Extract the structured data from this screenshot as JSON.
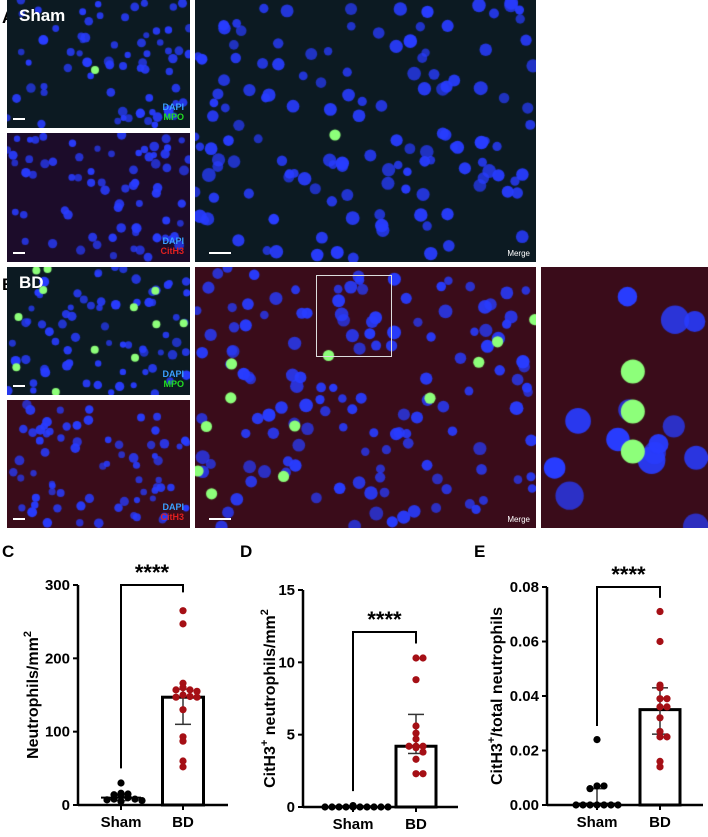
{
  "panels": {
    "A": "A",
    "B": "B",
    "C": "C",
    "D": "D",
    "E": "E"
  },
  "micrographs": {
    "sham_label": "Sham",
    "bd_label": "BD",
    "stain_dapi": "DAPI",
    "stain_mpo": "MPO",
    "stain_cith3": "CitH3",
    "merge": "Merge",
    "colors": {
      "dapi": "#2f6bff",
      "mpo": "#22dd22",
      "cith3": "#e02020"
    }
  },
  "chart_data": [
    {
      "type": "bar",
      "panel": "C",
      "ylabel": "Neutrophils/mm",
      "ylabel_sup": "2",
      "ylim": [
        0,
        300
      ],
      "yticks": [
        "0",
        "100",
        "200",
        "300"
      ],
      "categories": [
        "Sham",
        "BD"
      ],
      "means": [
        10,
        147
      ],
      "error": [
        [
          6,
          14
        ],
        [
          110,
          158
        ]
      ],
      "points": [
        [
          30,
          16,
          15,
          14,
          12,
          10,
          8,
          8,
          7,
          6,
          5
        ],
        [
          265,
          247,
          166,
          160,
          157,
          157,
          155,
          150,
          148,
          147,
          147,
          130,
          93,
          87,
          60,
          52
        ]
      ],
      "significance": "****",
      "bracket": {
        "top": 300,
        "legs": [
          50,
          290
        ]
      }
    },
    {
      "type": "bar",
      "panel": "D",
      "ylabel": "CitH3",
      "ylabel_sup": "+",
      "ylabel_rest": " neutrophils/mm",
      "ylabel_sup2": "2",
      "ylim": [
        0,
        15
      ],
      "yticks": [
        "0",
        "5",
        "10",
        "15"
      ],
      "categories": [
        "Sham",
        "BD"
      ],
      "means": [
        0.05,
        4.2
      ],
      "error": [
        [
          0,
          0.1
        ],
        [
          3.7,
          6.4
        ]
      ],
      "points": [
        [
          0,
          0,
          0,
          0,
          0,
          0,
          0,
          0,
          0,
          0,
          0.1
        ],
        [
          10.3,
          10.3,
          8.8,
          5.6,
          5.1,
          4.7,
          4.2,
          4.2,
          4.1,
          3.8,
          3.3,
          2.3,
          2.3,
          4.2
        ]
      ],
      "significance": "****",
      "bracket": {
        "top": 12.1,
        "legs": [
          1.1,
          11.3
        ]
      }
    },
    {
      "type": "bar",
      "panel": "E",
      "ylabel": "CitH3",
      "ylabel_sup": "+",
      "ylabel_rest": "/total neutrophils",
      "ylim": [
        0,
        0.08
      ],
      "yticks": [
        "0.00",
        "0.02",
        "0.04",
        "0.06",
        "0.08"
      ],
      "categories": [
        "Sham",
        "BD"
      ],
      "means": [
        0.0005,
        0.035
      ],
      "error": [
        [
          0,
          0.006
        ],
        [
          0.026,
          0.043
        ]
      ],
      "points": [
        [
          0.024,
          0.007,
          0.007,
          0.006,
          0,
          0,
          0,
          0,
          0,
          0,
          0
        ],
        [
          0.071,
          0.06,
          0.044,
          0.043,
          0.039,
          0.039,
          0.036,
          0.036,
          0.032,
          0.027,
          0.025,
          0.025,
          0.016,
          0.014
        ]
      ],
      "significance": "****",
      "bracket": {
        "top": 0.08,
        "legs": [
          0.029,
          0.076
        ]
      },
      "colors": {
        "sham": "#000000",
        "bd": "#a50f15"
      }
    }
  ]
}
